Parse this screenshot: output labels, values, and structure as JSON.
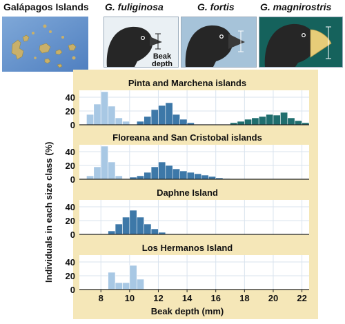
{
  "header": {
    "map_title": "Galápagos Islands",
    "species": [
      {
        "name": "G. fuliginosa"
      },
      {
        "name": "G. fortis"
      },
      {
        "name": "G. magnirostris"
      }
    ],
    "beak_label_line1": "Beak",
    "beak_label_line2": "depth"
  },
  "colors": {
    "panel_bg": "#f5e7b8",
    "plot_bg": "#ffffff",
    "fuliginosa": "#a8c8e4",
    "fortis": "#3d78a8",
    "magnirostris": "#1f6e6e"
  },
  "chart_data": {
    "type": "bar",
    "xlabel": "Beak depth (mm)",
    "ylabel": "Individuals in each size class (%)",
    "xlim": [
      6.5,
      22.5
    ],
    "xticks": [
      8,
      10,
      12,
      14,
      16,
      18,
      20,
      22
    ],
    "ylim": [
      0,
      50
    ],
    "yticks": [
      0,
      20,
      40
    ],
    "bin_width": 0.5,
    "panels": [
      {
        "title": "Pinta and Marchena islands",
        "series": [
          {
            "species": "fuliginosa",
            "x": [
              7.25,
              7.75,
              8.25,
              8.75,
              9.25,
              9.75
            ],
            "values": [
              15,
              30,
              48,
              27,
              10,
              5
            ]
          },
          {
            "species": "fortis",
            "x": [
              10.75,
              11.25,
              11.75,
              12.25,
              12.75,
              13.25,
              13.75,
              14.25
            ],
            "values": [
              5,
              12,
              22,
              28,
              32,
              15,
              8,
              3
            ]
          },
          {
            "species": "magnirostris",
            "x": [
              17.25,
              17.75,
              18.25,
              18.75,
              19.25,
              19.75,
              20.25,
              20.75,
              21.25,
              21.75,
              22.25
            ],
            "values": [
              3,
              5,
              8,
              10,
              12,
              15,
              14,
              18,
              10,
              6,
              3
            ]
          }
        ]
      },
      {
        "title": "Floreana and San Cristobal islands",
        "series": [
          {
            "species": "fuliginosa",
            "x": [
              7.25,
              7.75,
              8.25,
              8.75,
              9.25
            ],
            "values": [
              5,
              18,
              48,
              25,
              5
            ]
          },
          {
            "species": "fortis",
            "x": [
              10.25,
              10.75,
              11.25,
              11.75,
              12.25,
              12.75,
              13.25,
              13.75,
              14.25,
              14.75,
              15.25,
              15.75,
              16.25,
              16.75
            ],
            "values": [
              3,
              5,
              10,
              18,
              25,
              20,
              15,
              12,
              10,
              8,
              6,
              4,
              2,
              1
            ]
          }
        ]
      },
      {
        "title": "Daphne Island",
        "series": [
          {
            "species": "fortis",
            "x": [
              8.75,
              9.25,
              9.75,
              10.25,
              10.75,
              11.25,
              11.75,
              12.25
            ],
            "values": [
              5,
              15,
              25,
              35,
              25,
              15,
              8,
              3
            ]
          }
        ]
      },
      {
        "title": "Los Hermanos Island",
        "series": [
          {
            "species": "fuliginosa",
            "x": [
              8.75,
              9.25,
              9.75,
              10.25,
              10.75
            ],
            "values": [
              25,
              10,
              10,
              35,
              15
            ]
          }
        ]
      }
    ]
  }
}
